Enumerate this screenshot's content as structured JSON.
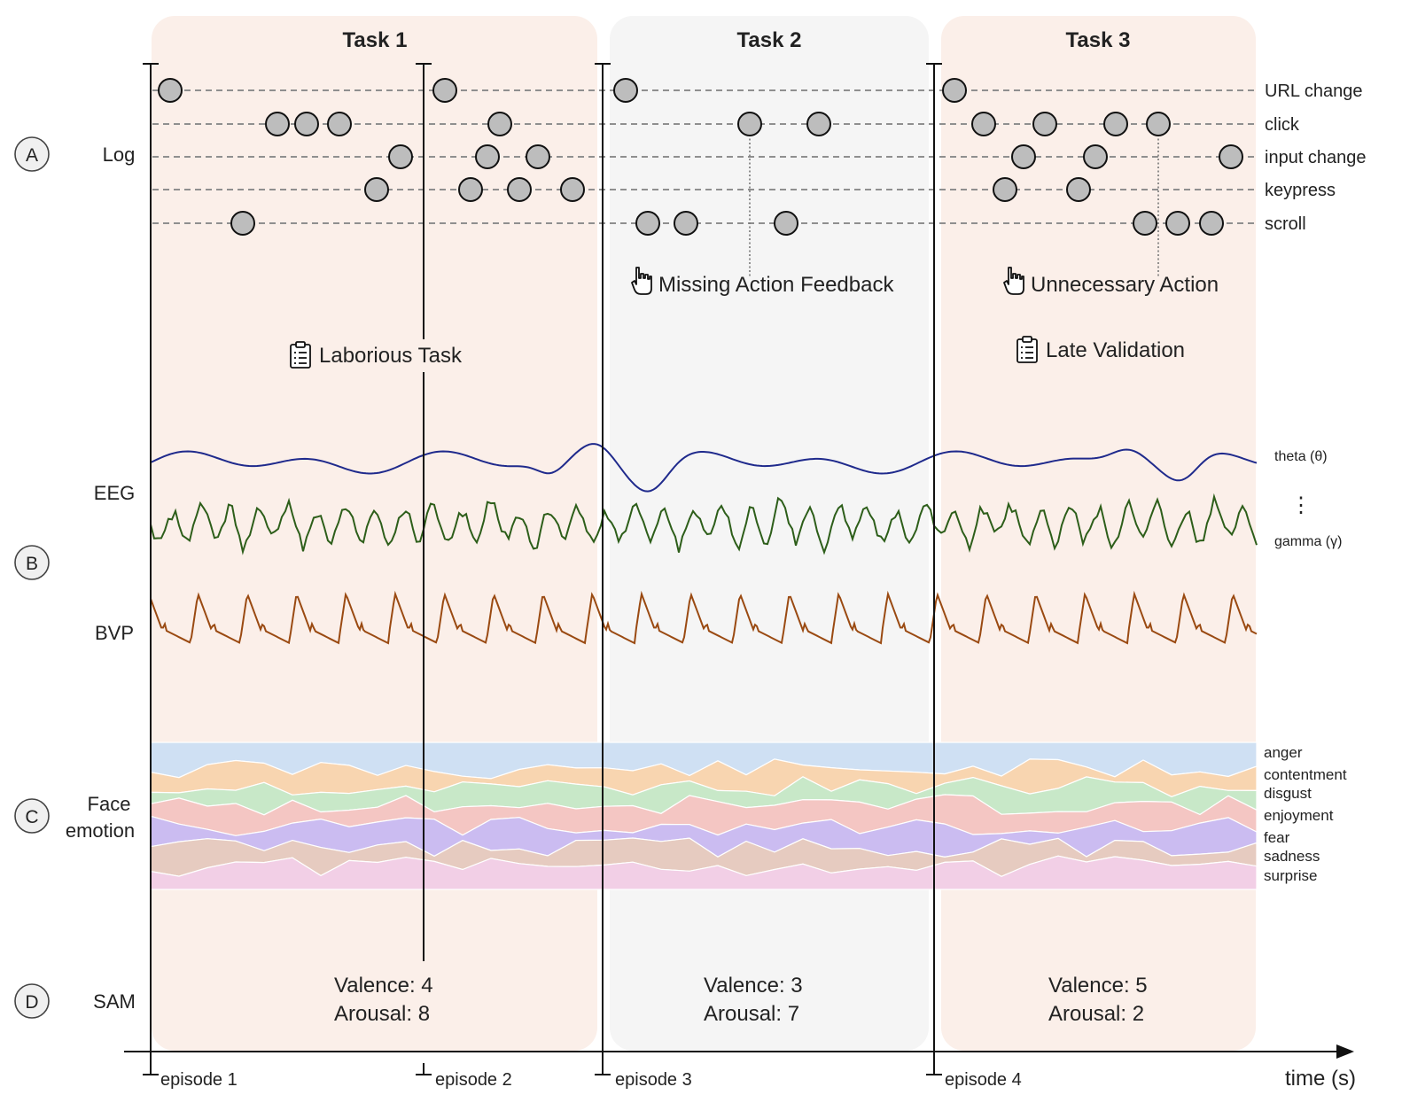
{
  "tasks": [
    {
      "title": "Task 1",
      "color": "#fbefe9"
    },
    {
      "title": "Task 2",
      "color": "#f5f5f5"
    },
    {
      "title": "Task 3",
      "color": "#fbefe9"
    }
  ],
  "sections": {
    "A": {
      "badge": "A",
      "label": "Log"
    },
    "B": {
      "badge": "B",
      "eeg": "EEG",
      "bvp": "BVP"
    },
    "C": {
      "badge": "C",
      "label_line1": "Face",
      "label_line2": "emotion"
    },
    "D": {
      "badge": "D",
      "label": "SAM"
    }
  },
  "log_events": [
    "URL change",
    "click",
    "input change",
    "keypress",
    "scroll"
  ],
  "eeg_bands": {
    "theta": "theta (θ)",
    "gamma": "gamma (γ)",
    "ellipsis": "⋮",
    "theta_color": "#1f2a8c",
    "gamma_color": "#2d5e1a"
  },
  "bvp_color": "#9a4a12",
  "issues": [
    {
      "label": "Missing Action Feedback",
      "icon": "hand-pointer-icon"
    },
    {
      "label": "Unnecessary Action",
      "icon": "hand-pointer-icon"
    },
    {
      "label": "Laborious Task",
      "icon": "clipboard-icon"
    },
    {
      "label": "Late Validation",
      "icon": "clipboard-icon"
    }
  ],
  "emotions": [
    {
      "name": "anger",
      "color": "#cfe0f3"
    },
    {
      "name": "contentment",
      "color": "#f8d5b0"
    },
    {
      "name": "disgust",
      "color": "#c8e8c8"
    },
    {
      "name": "enjoyment",
      "color": "#f4c6c3"
    },
    {
      "name": "fear",
      "color": "#cbbcf1"
    },
    {
      "name": "sadness",
      "color": "#e6cbc0"
    },
    {
      "name": "surprise",
      "color": "#f2cfe6"
    }
  ],
  "sam": [
    {
      "valence": "Valence: 4",
      "arousal": "Arousal: 8"
    },
    {
      "valence": "Valence: 3",
      "arousal": "Arousal: 7"
    },
    {
      "valence": "Valence: 5",
      "arousal": "Arousal: 2"
    }
  ],
  "episodes": [
    "episode 1",
    "episode 2",
    "episode 3",
    "episode 4"
  ],
  "time_axis": {
    "label": "time (s)"
  }
}
